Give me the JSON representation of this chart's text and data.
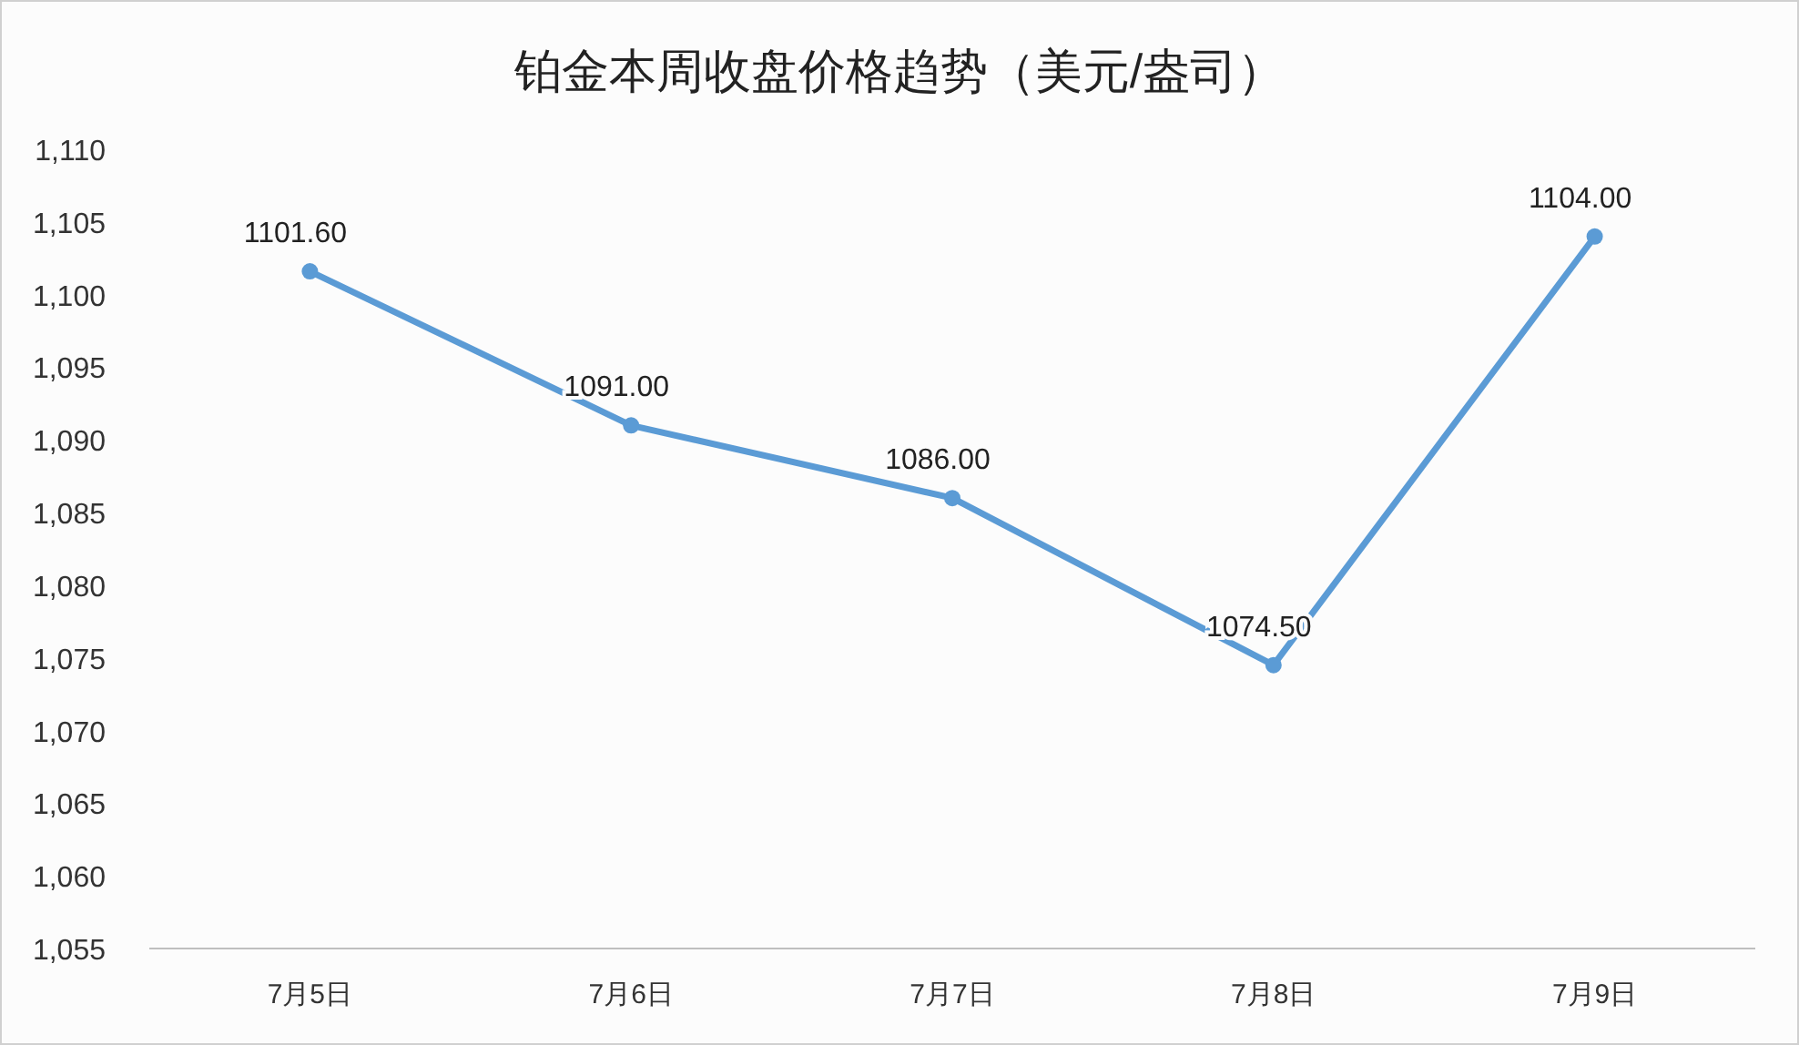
{
  "chart_data": {
    "type": "line",
    "title": "铂金本周收盘价格趋势（美元/盎司）",
    "categories": [
      "7月5日",
      "7月6日",
      "7月7日",
      "7月8日",
      "7月9日"
    ],
    "series": [
      {
        "color": "#5b9bd5",
        "values": [
          1101.6,
          1091.0,
          1086.0,
          1074.5,
          1104.0
        ],
        "value_labels": [
          "1101.60",
          "1091.00",
          "1086.00",
          "1074.50",
          "1104.00"
        ]
      }
    ],
    "ylim": [
      1055,
      1110
    ],
    "yticks": [
      {
        "value": 1055,
        "label": "1,055"
      },
      {
        "value": 1060,
        "label": "1,060"
      },
      {
        "value": 1065,
        "label": "1,065"
      },
      {
        "value": 1070,
        "label": "1,070"
      },
      {
        "value": 1075,
        "label": "1,075"
      },
      {
        "value": 1080,
        "label": "1,080"
      },
      {
        "value": 1085,
        "label": "1,085"
      },
      {
        "value": 1090,
        "label": "1,090"
      },
      {
        "value": 1095,
        "label": "1,095"
      },
      {
        "value": 1100,
        "label": "1,100"
      },
      {
        "value": 1105,
        "label": "1,105"
      },
      {
        "value": 1110,
        "label": "1,110"
      }
    ],
    "marker": "circle"
  }
}
